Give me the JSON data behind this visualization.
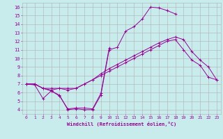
{
  "xlabel": "Windchill (Refroidissement éolien,°C)",
  "bg_color": "#c8ecec",
  "grid_color": "#b0b0b0",
  "line_color": "#990099",
  "xlim": [
    -0.5,
    23.5
  ],
  "ylim": [
    3.5,
    16.5
  ],
  "xticks": [
    0,
    1,
    2,
    3,
    4,
    5,
    6,
    7,
    8,
    9,
    10,
    11,
    12,
    13,
    14,
    15,
    16,
    17,
    18,
    19,
    20,
    21,
    22,
    23
  ],
  "yticks": [
    4,
    5,
    6,
    7,
    8,
    9,
    10,
    11,
    12,
    13,
    14,
    15,
    16
  ],
  "lines": [
    {
      "x": [
        0,
        1,
        2,
        3,
        4,
        5,
        6,
        7,
        8,
        9,
        10,
        11,
        12,
        13,
        14,
        15,
        16,
        17,
        18,
        19,
        20,
        21,
        22,
        23
      ],
      "y": [
        7.0,
        7.0,
        6.5,
        6.5,
        6.5,
        6.5,
        6.5,
        7.0,
        7.5,
        8.0,
        8.5,
        9.0,
        9.5,
        10.0,
        10.5,
        11.0,
        11.5,
        12.0,
        12.2,
        11.0,
        9.8,
        9.2,
        7.8,
        7.5
      ]
    },
    {
      "x": [
        0,
        1,
        2,
        3,
        4,
        5,
        6,
        7,
        8,
        9,
        10,
        11,
        12,
        13,
        14,
        15,
        16,
        17,
        18,
        19,
        20,
        21,
        22,
        23
      ],
      "y": [
        7.0,
        6.9,
        5.3,
        6.2,
        5.7,
        4.0,
        4.1,
        4.0,
        4.0,
        5.7,
        11.0,
        11.3,
        13.2,
        13.7,
        14.6,
        16.0,
        15.9,
        15.6,
        15.2,
        null,
        null,
        null,
        null,
        null
      ]
    },
    {
      "x": [
        0,
        1,
        2,
        3,
        4,
        5,
        6,
        7,
        8,
        9,
        10,
        11,
        12,
        13,
        14,
        15,
        16,
        17,
        18,
        19,
        20,
        21,
        22,
        23
      ],
      "y": [
        7.0,
        7.0,
        6.5,
        6.2,
        5.6,
        4.1,
        4.2,
        4.2,
        4.1,
        5.9,
        11.2,
        null,
        null,
        null,
        null,
        null,
        null,
        null,
        null,
        null,
        null,
        null,
        null,
        null
      ]
    },
    {
      "x": [
        0,
        1,
        2,
        3,
        4,
        5,
        6,
        7,
        8,
        9,
        10,
        11,
        12,
        13,
        14,
        15,
        16,
        17,
        18,
        19,
        20,
        21,
        22,
        23
      ],
      "y": [
        7.0,
        7.0,
        6.5,
        6.3,
        6.5,
        6.3,
        6.5,
        7.0,
        7.5,
        8.2,
        8.8,
        9.3,
        9.8,
        10.3,
        10.8,
        11.3,
        11.8,
        12.2,
        12.5,
        12.2,
        10.8,
        9.8,
        9.0,
        7.5
      ]
    }
  ]
}
